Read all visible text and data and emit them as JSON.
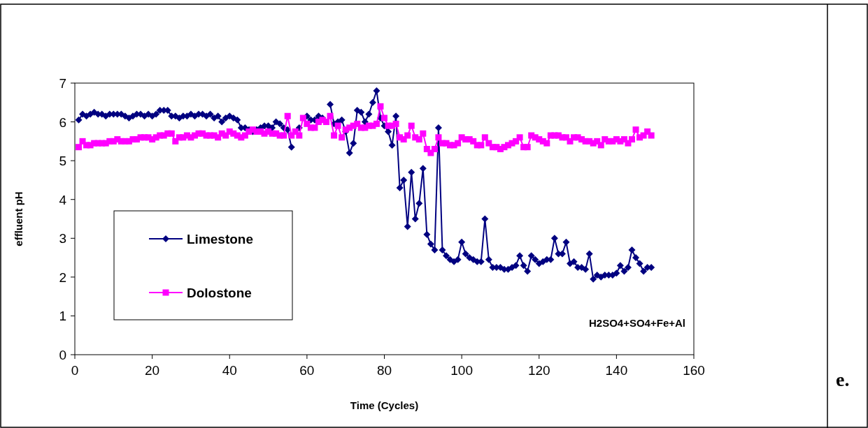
{
  "chart_data": {
    "type": "line",
    "xlabel": "Time (Cycles)",
    "ylabel": "effluent pH",
    "annotations": [
      "H2SO4+SO4+Fe+Al",
      "e."
    ],
    "xlim": [
      0,
      160
    ],
    "xticks": [
      0,
      20,
      40,
      60,
      80,
      100,
      120,
      140,
      160
    ],
    "ylim": [
      0,
      7
    ],
    "yticks": [
      0,
      1,
      2,
      3,
      4,
      5,
      6,
      7
    ],
    "grid": false,
    "legend": "left",
    "line_style": "solid",
    "x": [
      1,
      2,
      3,
      4,
      5,
      6,
      7,
      8,
      9,
      10,
      11,
      12,
      13,
      14,
      15,
      16,
      17,
      18,
      19,
      20,
      21,
      22,
      23,
      24,
      25,
      26,
      27,
      28,
      29,
      30,
      31,
      32,
      33,
      34,
      35,
      36,
      37,
      38,
      39,
      40,
      41,
      42,
      43,
      44,
      45,
      46,
      47,
      48,
      49,
      50,
      51,
      52,
      53,
      54,
      55,
      56,
      57,
      58,
      59,
      60,
      61,
      62,
      63,
      64,
      65,
      66,
      67,
      68,
      69,
      70,
      71,
      72,
      73,
      74,
      75,
      76,
      77,
      78,
      79,
      80,
      81,
      82,
      83,
      84,
      85,
      86,
      87,
      88,
      89,
      90,
      91,
      92,
      93,
      94,
      95,
      96,
      97,
      98,
      99,
      100,
      101,
      102,
      103,
      104,
      105,
      106,
      107,
      108,
      109,
      110,
      111,
      112,
      113,
      114,
      115,
      116,
      117,
      118,
      119,
      120,
      121,
      122,
      123,
      124,
      125,
      126,
      127,
      128,
      129,
      130,
      131,
      132,
      133,
      134,
      135,
      136,
      137,
      138,
      139,
      140,
      141,
      142,
      143,
      144,
      145,
      146,
      147,
      148,
      149
    ],
    "series": [
      {
        "name": "Limestone",
        "color": "#000080",
        "marker": "diamond",
        "values": [
          6.05,
          6.2,
          6.15,
          6.2,
          6.25,
          6.2,
          6.2,
          6.15,
          6.2,
          6.2,
          6.2,
          6.2,
          6.15,
          6.1,
          6.15,
          6.2,
          6.2,
          6.15,
          6.2,
          6.15,
          6.2,
          6.3,
          6.3,
          6.3,
          6.15,
          6.15,
          6.1,
          6.15,
          6.15,
          6.2,
          6.15,
          6.2,
          6.2,
          6.15,
          6.2,
          6.1,
          6.15,
          6.0,
          6.1,
          6.15,
          6.1,
          6.05,
          5.85,
          5.85,
          5.8,
          5.75,
          5.8,
          5.85,
          5.9,
          5.9,
          5.85,
          6.0,
          5.95,
          5.85,
          5.8,
          5.35,
          null,
          5.85,
          null,
          6.15,
          6.05,
          6.05,
          6.15,
          6.1,
          null,
          6.45,
          5.95,
          6.0,
          6.05,
          5.75,
          5.2,
          5.45,
          6.3,
          6.25,
          6.0,
          6.2,
          6.5,
          6.8,
          6.1,
          5.9,
          5.75,
          5.4,
          6.15,
          4.3,
          4.5,
          3.3,
          4.7,
          3.5,
          3.9,
          4.8,
          3.1,
          2.85,
          2.7,
          5.85,
          2.7,
          2.55,
          2.45,
          2.4,
          2.45,
          2.9,
          2.6,
          2.5,
          2.45,
          2.4,
          2.4,
          3.5,
          2.45,
          2.25,
          2.25,
          2.25,
          2.2,
          2.2,
          2.25,
          2.3,
          2.55,
          2.3,
          2.15,
          2.55,
          2.45,
          2.35,
          2.4,
          2.45,
          2.45,
          3.0,
          2.6,
          2.6,
          2.9,
          2.35,
          2.4,
          2.25,
          2.25,
          2.2,
          2.6,
          1.95,
          2.05,
          2.0,
          2.05,
          2.05,
          2.05,
          2.1,
          2.3,
          2.15,
          2.25,
          2.7,
          2.5,
          2.35,
          2.15,
          2.25,
          2.25
        ]
      },
      {
        "name": "Dolostone",
        "color": "#ff00ff",
        "marker": "square",
        "values": [
          5.35,
          5.5,
          5.4,
          5.4,
          5.45,
          5.45,
          5.45,
          5.45,
          5.5,
          5.5,
          5.55,
          5.5,
          5.5,
          5.5,
          5.55,
          5.55,
          5.6,
          5.6,
          5.6,
          5.55,
          5.6,
          5.65,
          5.65,
          5.7,
          5.7,
          5.5,
          5.6,
          5.6,
          5.65,
          5.6,
          5.65,
          5.7,
          5.7,
          5.65,
          5.65,
          5.65,
          5.6,
          5.7,
          5.65,
          5.75,
          5.7,
          5.65,
          5.6,
          5.65,
          5.75,
          5.8,
          5.75,
          5.75,
          5.7,
          5.75,
          5.7,
          5.7,
          5.65,
          5.65,
          6.15,
          5.65,
          5.75,
          5.65,
          6.1,
          5.95,
          5.85,
          5.85,
          6.0,
          6.05,
          6.0,
          6.15,
          5.65,
          5.9,
          5.6,
          5.8,
          5.85,
          5.9,
          5.95,
          5.85,
          5.85,
          5.9,
          5.9,
          5.95,
          6.4,
          6.1,
          5.9,
          5.9,
          5.95,
          5.6,
          5.55,
          5.65,
          5.9,
          5.6,
          5.55,
          5.7,
          5.3,
          5.2,
          5.3,
          5.6,
          5.45,
          5.45,
          5.4,
          5.4,
          5.45,
          5.6,
          5.55,
          5.55,
          5.5,
          5.4,
          5.4,
          5.6,
          5.45,
          5.35,
          5.35,
          5.3,
          5.35,
          5.4,
          5.45,
          5.5,
          5.6,
          5.35,
          5.35,
          5.65,
          5.6,
          5.55,
          5.5,
          5.45,
          5.65,
          5.65,
          5.65,
          5.6,
          5.6,
          5.5,
          5.6,
          5.6,
          5.55,
          5.5,
          5.5,
          5.45,
          5.5,
          5.4,
          5.55,
          5.5,
          5.5,
          5.55,
          5.5,
          5.55,
          5.45,
          5.55,
          5.8,
          5.6,
          5.65,
          5.75,
          5.65
        ]
      }
    ]
  }
}
